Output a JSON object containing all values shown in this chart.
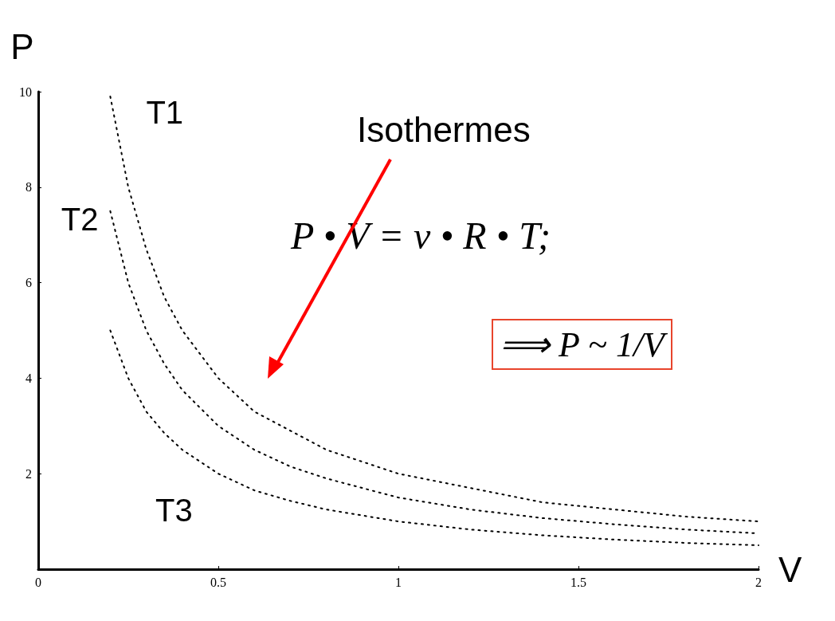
{
  "chart_data": {
    "type": "line",
    "xlabel": "V",
    "ylabel": "P",
    "annotations": [
      "Isothermes",
      "P • V = ν • R • T;",
      "⟹ P ~ 1/V"
    ],
    "xlim": [
      0,
      2
    ],
    "xticks": [
      0,
      0.5,
      1,
      1.5,
      2
    ],
    "ylim": [
      0,
      10
    ],
    "yticks": [
      {
        "value": 0,
        "label": null
      },
      2,
      4,
      6,
      8,
      10
    ],
    "grid": false,
    "legend": false,
    "marker": "none",
    "line_style": "dotted",
    "series": [
      {
        "name": "T1",
        "color": "#000000",
        "x": [
          0.2,
          0.25,
          0.3,
          0.35,
          0.4,
          0.5,
          0.6,
          0.7,
          0.8,
          1,
          1.2,
          1.4,
          1.6,
          1.8,
          2
        ],
        "values": [
          9.9,
          8,
          6.7,
          5.7,
          5,
          4,
          3.3,
          2.9,
          2.5,
          2,
          1.7,
          1.4,
          1.25,
          1.1,
          1
        ]
      },
      {
        "name": "T2",
        "color": "#000000",
        "x": [
          0.2,
          0.25,
          0.3,
          0.35,
          0.4,
          0.5,
          0.6,
          0.7,
          0.8,
          1,
          1.2,
          1.4,
          1.6,
          1.8,
          2
        ],
        "values": [
          7.5,
          6,
          5,
          4.3,
          3.75,
          3,
          2.5,
          2.15,
          1.9,
          1.5,
          1.25,
          1.07,
          0.94,
          0.83,
          0.75
        ]
      },
      {
        "name": "T3",
        "color": "#000000",
        "x": [
          0.2,
          0.25,
          0.3,
          0.35,
          0.4,
          0.5,
          0.6,
          0.7,
          0.8,
          1,
          1.2,
          1.4,
          1.6,
          1.8,
          2
        ],
        "values": [
          5,
          4,
          3.3,
          2.85,
          2.5,
          2,
          1.65,
          1.43,
          1.25,
          1,
          0.83,
          0.71,
          0.62,
          0.55,
          0.5
        ]
      }
    ]
  }
}
